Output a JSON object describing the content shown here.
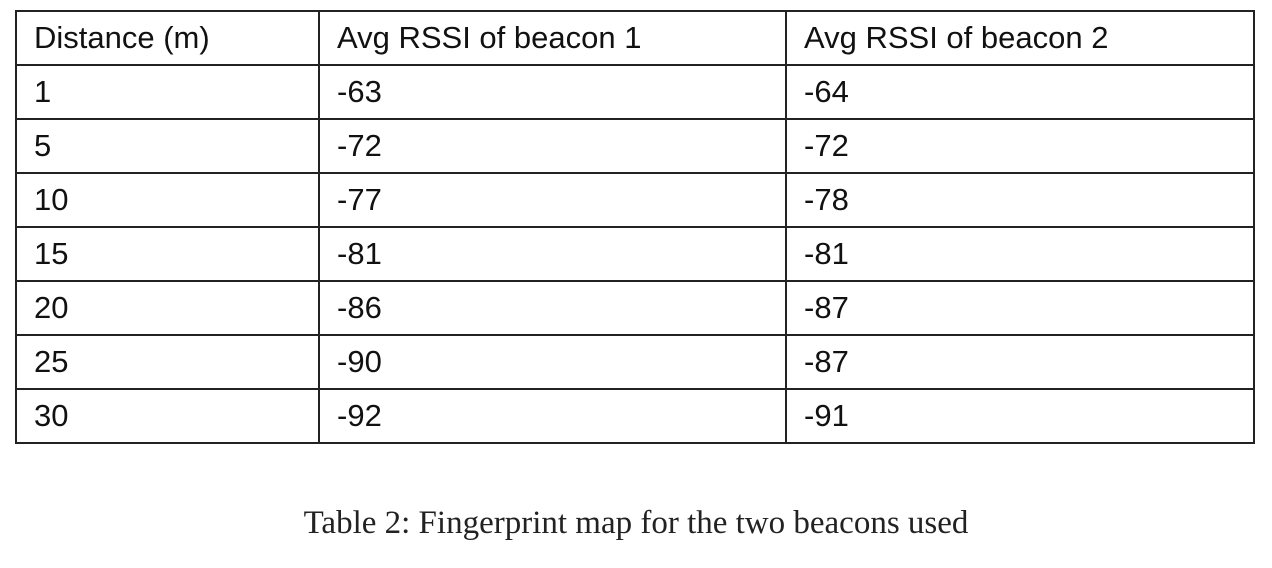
{
  "table": {
    "header": [
      "Distance (m)",
      "Avg RSSI of beacon 1",
      "Avg RSSI of beacon 2"
    ],
    "rows": [
      [
        1,
        -63,
        -64
      ],
      [
        5,
        -72,
        -72
      ],
      [
        10,
        -77,
        -78
      ],
      [
        15,
        -81,
        -81
      ],
      [
        20,
        -86,
        -87
      ],
      [
        25,
        -90,
        -87
      ],
      [
        30,
        -92,
        -91
      ]
    ]
  },
  "caption": "Table 2: Fingerprint map for the two beacons used"
}
